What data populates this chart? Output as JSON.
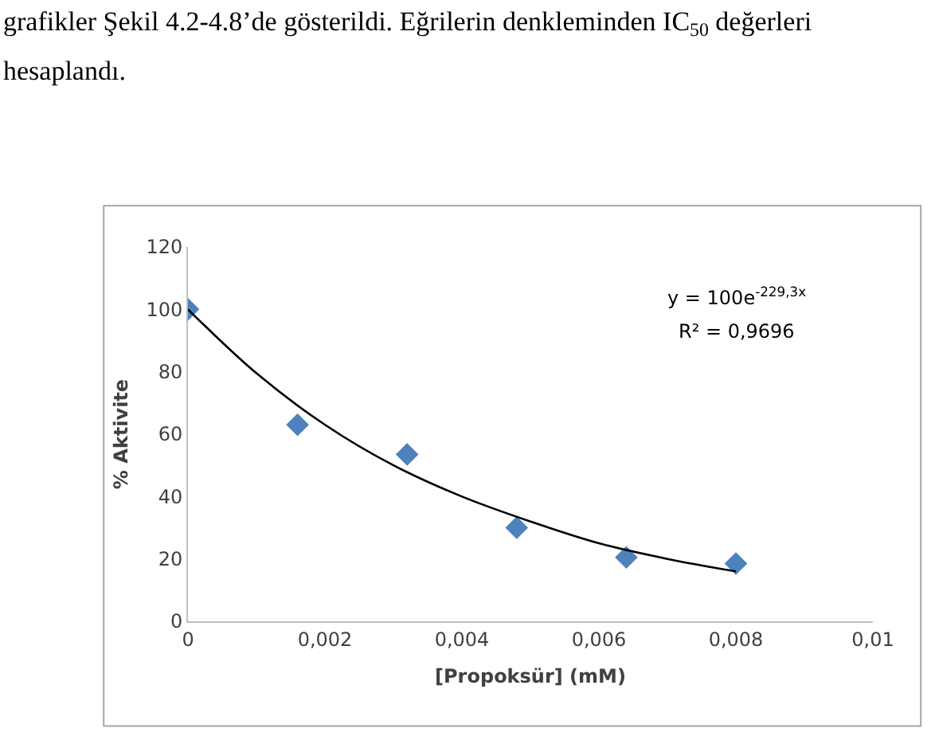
{
  "chart_data": {
    "type": "scatter",
    "xlabel": "[Propoksür] (mM)",
    "ylabel": "% Aktivite",
    "annotations": [
      "grafikler Şekil 4.2-4.8’de gösterildi. Eğrilerin denkleminden IC$_{50}$ değerleri",
      "hesaplandı.",
      "y = 100e$^{-229,3x}$",
      "R² = 0,9696"
    ],
    "x": [
      0,
      0.0016,
      0.0032,
      0.0048,
      0.0064,
      0.008
    ],
    "series": [
      {
        "color": "#4f81bd",
        "values": [
          100,
          63,
          53.5,
          30,
          20.5,
          18.5
        ]
      },
      {
        "type": "line",
        "marker": "none",
        "color": "#000000",
        "x": [
          0,
          0.001,
          0.002,
          0.003,
          0.004,
          0.005,
          0.006,
          0.007,
          0.008
        ],
        "values": [
          100,
          79.5,
          63,
          50,
          40,
          32,
          25,
          20,
          16
        ]
      }
    ],
    "xlim": [
      0,
      0.01
    ],
    "xticks": [
      {
        "value": 0,
        "label": "0"
      },
      {
        "value": 0.002,
        "label": "0,002"
      },
      {
        "value": 0.004,
        "label": "0,004"
      },
      {
        "value": 0.006,
        "label": "0,006"
      },
      {
        "value": 0.008,
        "label": "0,008"
      },
      {
        "value": 0.01,
        "label": "0,01"
      }
    ],
    "ylim": [
      0,
      120
    ],
    "yticks": [
      0,
      20,
      40,
      60,
      80,
      100,
      120
    ],
    "marker": "diamond"
  }
}
